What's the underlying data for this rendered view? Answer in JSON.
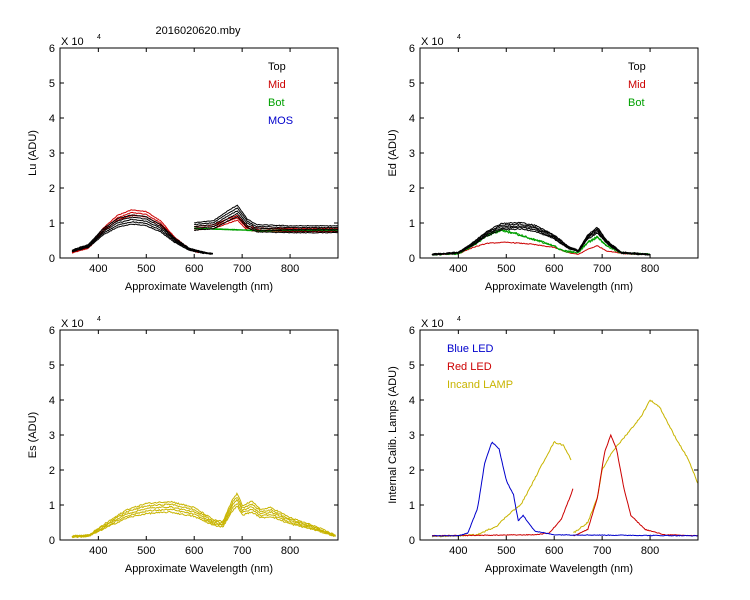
{
  "title": "2016020620.mby",
  "colors": {
    "black": "#000000",
    "red": "#cc0000",
    "green": "#00a000",
    "blue": "#0000cc",
    "olive": "#c8b400"
  },
  "chart_data": [
    {
      "type": "line",
      "id": "lu",
      "ylabel": "Lu (ADU)",
      "xlabel": "Approximate Wavelength (nm)",
      "xlim": [
        320,
        900
      ],
      "ylim": [
        0,
        6
      ],
      "multiplier": "X 10",
      "exponent": "4",
      "xticks": [
        "400",
        "500",
        "600",
        "700",
        "800"
      ],
      "yticks": [
        "0",
        "1",
        "2",
        "3",
        "4",
        "5",
        "6"
      ],
      "legend": [
        {
          "label": "Top",
          "color": "#000000"
        },
        {
          "label": "Mid",
          "color": "#cc0000"
        },
        {
          "label": "Bot",
          "color": "#00a000"
        },
        {
          "label": "MOS",
          "color": "#0000cc"
        }
      ],
      "series": [
        {
          "name": "Mid",
          "color": "#cc0000",
          "repeat": 3,
          "jitter": 0.06,
          "noise": 0.02,
          "segments": [
            [
              [
                345,
                0.15
              ],
              [
                380,
                0.3
              ],
              [
                410,
                0.8
              ],
              [
                440,
                1.15
              ],
              [
                470,
                1.3
              ],
              [
                500,
                1.25
              ],
              [
                530,
                1.0
              ],
              [
                560,
                0.55
              ],
              [
                590,
                0.25
              ],
              [
                610,
                0.15
              ]
            ],
            [
              [
                600,
                0.85
              ],
              [
                640,
                0.9
              ],
              [
                670,
                1.05
              ],
              [
                690,
                1.15
              ],
              [
                710,
                0.85
              ],
              [
                740,
                0.8
              ],
              [
                800,
                0.8
              ],
              [
                900,
                0.8
              ]
            ]
          ]
        },
        {
          "name": "Bot",
          "color": "#00a000",
          "repeat": 2,
          "jitter": 0.02,
          "noise": 0.01,
          "segments": [
            [
              [
                600,
                0.85
              ],
              [
                660,
                0.82
              ],
              [
                700,
                0.8
              ],
              [
                740,
                0.78
              ],
              [
                900,
                0.8
              ]
            ]
          ]
        },
        {
          "name": "Top",
          "color": "#000000",
          "repeat": 5,
          "jitter": 0.06,
          "noise": 0.02,
          "segments": [
            [
              [
                345,
                0.2
              ],
              [
                380,
                0.35
              ],
              [
                410,
                0.75
              ],
              [
                440,
                1.0
              ],
              [
                470,
                1.1
              ],
              [
                500,
                1.05
              ],
              [
                530,
                0.85
              ],
              [
                560,
                0.5
              ],
              [
                590,
                0.25
              ],
              [
                620,
                0.15
              ],
              [
                640,
                0.12
              ]
            ],
            [
              [
                600,
                0.9
              ],
              [
                640,
                0.95
              ],
              [
                670,
                1.2
              ],
              [
                690,
                1.35
              ],
              [
                710,
                1.0
              ],
              [
                730,
                0.85
              ],
              [
                800,
                0.82
              ],
              [
                900,
                0.82
              ]
            ]
          ]
        }
      ]
    },
    {
      "type": "line",
      "id": "ed",
      "ylabel": "Ed  (ADU)",
      "xlabel": "Approximate Wavelength (nm)",
      "xlim": [
        320,
        900
      ],
      "ylim": [
        0,
        6
      ],
      "multiplier": "X 10",
      "exponent": "4",
      "xticks": [
        "400",
        "500",
        "600",
        "700",
        "800"
      ],
      "yticks": [
        "0",
        "1",
        "2",
        "3",
        "4",
        "5",
        "6"
      ],
      "legend": [
        {
          "label": "Top",
          "color": "#000000"
        },
        {
          "label": "Mid",
          "color": "#cc0000"
        },
        {
          "label": "Bot",
          "color": "#00a000"
        }
      ],
      "series": [
        {
          "name": "Mid",
          "color": "#cc0000",
          "repeat": 1,
          "jitter": 0.0,
          "noise": 0.02,
          "segments": [
            [
              [
                345,
                0.1
              ],
              [
                400,
                0.12
              ],
              [
                430,
                0.3
              ],
              [
                460,
                0.42
              ],
              [
                500,
                0.45
              ],
              [
                550,
                0.4
              ],
              [
                600,
                0.3
              ],
              [
                630,
                0.15
              ],
              [
                650,
                0.1
              ],
              [
                670,
                0.25
              ],
              [
                690,
                0.35
              ],
              [
                710,
                0.2
              ],
              [
                750,
                0.12
              ],
              [
                800,
                0.1
              ]
            ]
          ]
        },
        {
          "name": "Bot",
          "color": "#00a000",
          "repeat": 2,
          "jitter": 0.04,
          "noise": 0.05,
          "segments": [
            [
              [
                345,
                0.1
              ],
              [
                400,
                0.12
              ],
              [
                430,
                0.35
              ],
              [
                460,
                0.65
              ],
              [
                490,
                0.8
              ],
              [
                520,
                0.7
              ],
              [
                550,
                0.55
              ],
              [
                590,
                0.4
              ],
              [
                620,
                0.2
              ],
              [
                650,
                0.15
              ],
              [
                670,
                0.45
              ],
              [
                690,
                0.6
              ],
              [
                710,
                0.35
              ],
              [
                740,
                0.15
              ],
              [
                800,
                0.1
              ]
            ]
          ]
        },
        {
          "name": "Top",
          "color": "#000000",
          "repeat": 5,
          "jitter": 0.05,
          "noise": 0.03,
          "segments": [
            [
              [
                345,
                0.1
              ],
              [
                400,
                0.15
              ],
              [
                430,
                0.4
              ],
              [
                460,
                0.7
              ],
              [
                490,
                0.9
              ],
              [
                530,
                0.92
              ],
              [
                560,
                0.85
              ],
              [
                600,
                0.6
              ],
              [
                630,
                0.3
              ],
              [
                650,
                0.2
              ],
              [
                670,
                0.6
              ],
              [
                690,
                0.8
              ],
              [
                710,
                0.45
              ],
              [
                740,
                0.15
              ],
              [
                800,
                0.1
              ]
            ]
          ]
        }
      ]
    },
    {
      "type": "line",
      "id": "es",
      "ylabel": "Es  (ADU)",
      "xlabel": "Approximate Wavelength (nm)",
      "xlim": [
        320,
        900
      ],
      "ylim": [
        0,
        6
      ],
      "multiplier": "X 10",
      "exponent": "4",
      "xticks": [
        "400",
        "500",
        "600",
        "700",
        "800"
      ],
      "yticks": [
        "0",
        "1",
        "2",
        "3",
        "4",
        "5",
        "6"
      ],
      "legend": [],
      "series": [
        {
          "name": "Es",
          "color": "#c8b400",
          "repeat": 5,
          "jitter": 0.08,
          "noise": 0.04,
          "segments": [
            [
              [
                345,
                0.1
              ],
              [
                380,
                0.12
              ],
              [
                420,
                0.45
              ],
              [
                460,
                0.75
              ],
              [
                500,
                0.9
              ],
              [
                550,
                0.95
              ],
              [
                600,
                0.8
              ],
              [
                640,
                0.5
              ],
              [
                660,
                0.45
              ],
              [
                680,
                1.0
              ],
              [
                690,
                1.15
              ],
              [
                700,
                0.85
              ],
              [
                720,
                0.95
              ],
              [
                740,
                0.75
              ],
              [
                760,
                0.8
              ],
              [
                800,
                0.55
              ],
              [
                850,
                0.35
              ],
              [
                895,
                0.12
              ]
            ]
          ]
        }
      ]
    },
    {
      "type": "line",
      "id": "lamps",
      "ylabel": "Internal Calib. Lamps (ADU)",
      "xlabel": "Approximate Wavelength (nm)",
      "xlim": [
        320,
        900
      ],
      "ylim": [
        0,
        6
      ],
      "multiplier": "X 10",
      "exponent": "4",
      "xticks": [
        "400",
        "500",
        "600",
        "700",
        "800"
      ],
      "yticks": [
        "0",
        "1",
        "2",
        "3",
        "4",
        "5",
        "6"
      ],
      "legend": [
        {
          "label": "Blue LED",
          "color": "#0000cc"
        },
        {
          "label": "Red LED",
          "color": "#cc0000"
        },
        {
          "label": "Incand LAMP",
          "color": "#c8b400"
        }
      ],
      "series": [
        {
          "name": "Incand LAMP",
          "color": "#c8b400",
          "repeat": 1,
          "jitter": 0.0,
          "noise": 0.04,
          "segments": [
            [
              [
                345,
                0.1
              ],
              [
                400,
                0.12
              ],
              [
                440,
                0.15
              ],
              [
                480,
                0.4
              ],
              [
                510,
                0.8
              ],
              [
                530,
                1.0
              ],
              [
                550,
                1.5
              ],
              [
                580,
                2.3
              ],
              [
                600,
                2.8
              ],
              [
                620,
                2.7
              ],
              [
                635,
                2.3
              ]
            ],
            [
              [
                640,
                0.2
              ],
              [
                670,
                0.5
              ],
              [
                690,
                1.2
              ],
              [
                700,
                2.0
              ],
              [
                720,
                2.5
              ],
              [
                750,
                3.0
              ],
              [
                780,
                3.5
              ],
              [
                800,
                4.0
              ],
              [
                820,
                3.8
              ],
              [
                850,
                3.0
              ],
              [
                880,
                2.3
              ],
              [
                900,
                1.6
              ]
            ]
          ]
        },
        {
          "name": "Red LED",
          "color": "#cc0000",
          "repeat": 1,
          "jitter": 0.0,
          "noise": 0.02,
          "segments": [
            [
              [
                345,
                0.12
              ],
              [
                560,
                0.15
              ],
              [
                590,
                0.2
              ],
              [
                615,
                0.6
              ],
              [
                635,
                1.3
              ],
              [
                640,
                1.5
              ]
            ],
            [
              [
                640,
                0.12
              ],
              [
                670,
                0.3
              ],
              [
                690,
                1.2
              ],
              [
                705,
                2.5
              ],
              [
                718,
                3.0
              ],
              [
                730,
                2.6
              ],
              [
                745,
                1.5
              ],
              [
                760,
                0.7
              ],
              [
                790,
                0.3
              ],
              [
                830,
                0.15
              ],
              [
                900,
                0.12
              ]
            ]
          ]
        },
        {
          "name": "Blue LED",
          "color": "#0000cc",
          "repeat": 1,
          "jitter": 0.0,
          "noise": 0.02,
          "segments": [
            [
              [
                345,
                0.12
              ],
              [
                400,
                0.12
              ],
              [
                420,
                0.2
              ],
              [
                440,
                0.9
              ],
              [
                455,
                2.2
              ],
              [
                470,
                2.8
              ],
              [
                485,
                2.6
              ],
              [
                500,
                1.7
              ],
              [
                515,
                1.3
              ],
              [
                525,
                0.55
              ],
              [
                535,
                0.7
              ],
              [
                560,
                0.25
              ],
              [
                600,
                0.15
              ],
              [
                900,
                0.12
              ]
            ]
          ]
        }
      ]
    }
  ]
}
